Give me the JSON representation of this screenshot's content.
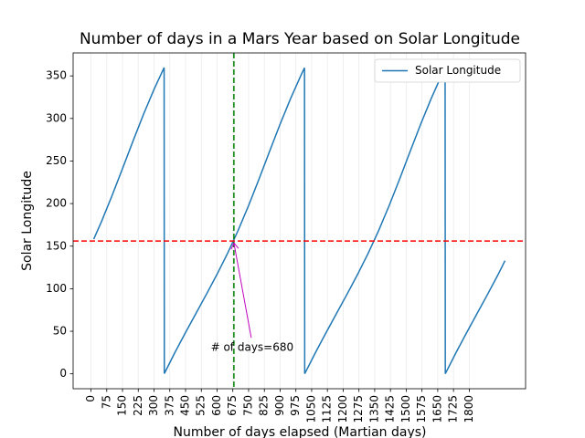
{
  "chart_data": {
    "type": "line",
    "title": "Number of days in a Mars Year based on Solar Longitude",
    "x_label": "Number of days elapsed (Martian days)",
    "y_label": "Solar Longitude",
    "x": [
      13,
      50,
      100,
      150,
      200,
      250,
      300,
      347,
      348,
      349,
      400,
      450,
      500,
      550,
      600,
      650,
      700,
      750,
      800,
      850,
      900,
      950,
      1000,
      1016,
      1017,
      1069,
      1119,
      1169,
      1219,
      1269,
      1319,
      1369,
      1419,
      1469,
      1519,
      1569,
      1619,
      1669,
      1685,
      1686,
      1738,
      1788,
      1838,
      1888,
      1938,
      1970
    ],
    "series": [
      {
        "name": "Solar Longitude",
        "color": "#1f77b4",
        "values": [
          158.2,
          178.9,
          209.2,
          241.1,
          273.5,
          304.9,
          334.2,
          359.3,
          359.8,
          0.3,
          25.4,
          48.6,
          71.2,
          93.8,
          117.0,
          141.6,
          168.4,
          197.7,
          229.1,
          261.5,
          293.4,
          323.5,
          351.2,
          359.5,
          0.1,
          25.4,
          48.6,
          71.2,
          93.8,
          117.0,
          141.6,
          168.4,
          197.7,
          229.1,
          261.5,
          293.4,
          323.5,
          351.2,
          359.5,
          0.1,
          25.4,
          48.6,
          71.2,
          93.8,
          117.0,
          132.9
        ]
      }
    ],
    "xlim": [
      -85,
      2068
    ],
    "ylim": [
      -17.5,
      377
    ],
    "xticks": [
      0,
      75,
      150,
      225,
      300,
      375,
      450,
      525,
      600,
      675,
      750,
      825,
      900,
      975,
      1050,
      1125,
      1200,
      1275,
      1350,
      1425,
      1500,
      1575,
      1650,
      1725,
      1800
    ],
    "yticks": [
      0,
      50,
      100,
      150,
      200,
      250,
      300,
      350
    ],
    "x_grid": true,
    "hline": {
      "value": 156,
      "color": "red"
    },
    "vline": {
      "value": 680,
      "color": "green"
    },
    "annotation": {
      "text": "# of days=680",
      "color": "#bf00bf"
    },
    "legend": "upper right"
  }
}
